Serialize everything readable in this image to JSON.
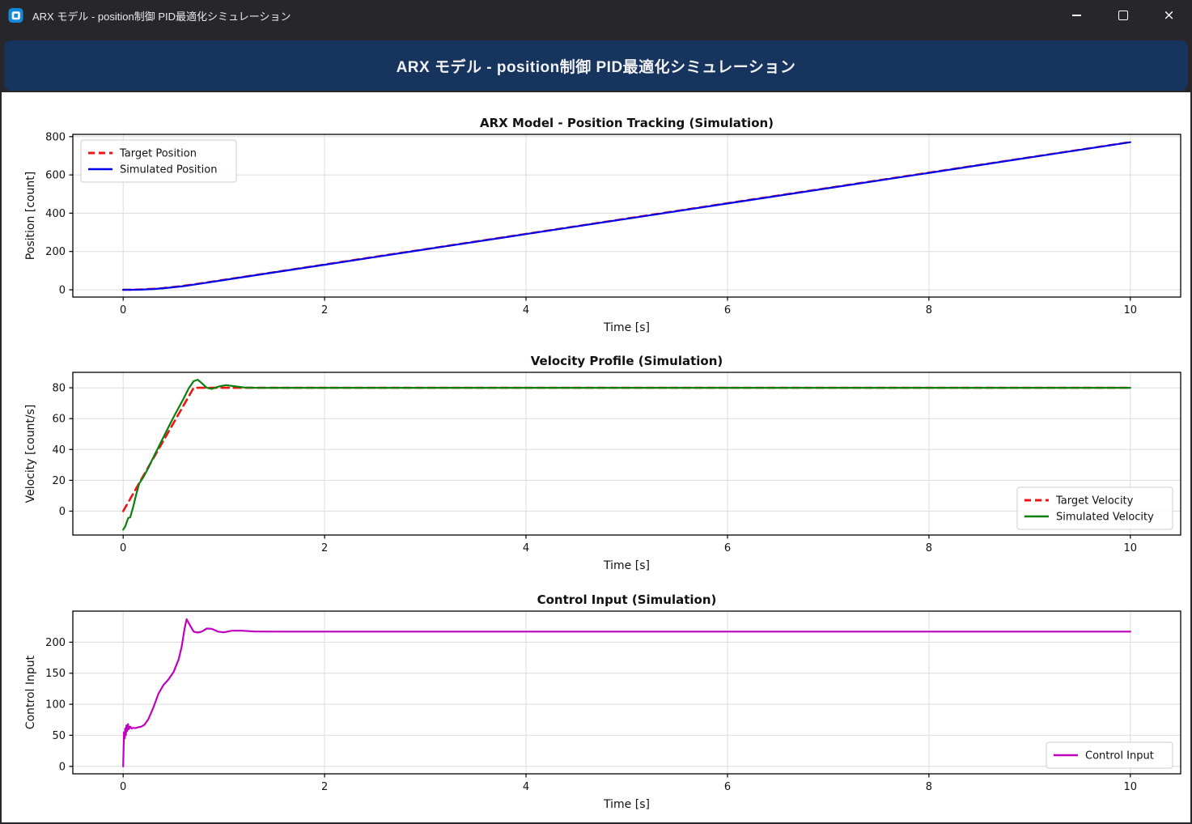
{
  "window": {
    "title": "ARX モデル - position制御 PID最適化シミュレーション",
    "controls": {
      "minimize": "minimize",
      "maximize": "maximize",
      "close_glyph": "×"
    }
  },
  "header": {
    "title": "ARX モデル - position制御 PID最適化シミュレーション"
  },
  "colors": {
    "titlebar_bg": "#26262b",
    "banner_bg": "#16345e",
    "figure_bg": "#ffffff",
    "target_red": "#f01414",
    "position_blue": "#0000ee",
    "velocity_green": "#0c800c",
    "control_magenta": "#bf00bf",
    "grid": "#dcdcdc"
  },
  "chart_data": [
    {
      "type": "line",
      "title": "ARX Model - Position Tracking (Simulation)",
      "xlabel": "Time [s]",
      "ylabel": "Position [count]",
      "xlim": [
        -0.5,
        10.5
      ],
      "ylim": [
        -38,
        812
      ],
      "xticks": [
        0,
        2,
        4,
        6,
        8,
        10
      ],
      "yticks": [
        0,
        200,
        400,
        600,
        800
      ],
      "grid": true,
      "legend": "upper-left",
      "series": [
        {
          "name": "Target Position",
          "color": "#f01414",
          "dash": true,
          "width": 2.6,
          "x": [
            0,
            0.1,
            0.2,
            0.3,
            0.4,
            0.5,
            0.6,
            0.7,
            1,
            1.5,
            2,
            2.5,
            3,
            4,
            5,
            6,
            7,
            8,
            9,
            10
          ],
          "y": [
            0,
            0.6,
            2.3,
            5.1,
            9.1,
            14.3,
            20.6,
            28,
            52,
            92,
            132,
            172,
            212,
            292,
            372,
            452,
            532,
            612,
            692,
            772
          ]
        },
        {
          "name": "Simulated Position",
          "color": "#0000ee",
          "dash": false,
          "width": 2.2,
          "x": [
            0,
            0.1,
            0.2,
            0.3,
            0.4,
            0.5,
            0.6,
            0.7,
            1,
            1.5,
            2,
            2.5,
            3,
            4,
            5,
            6,
            7,
            8,
            9,
            10
          ],
          "y": [
            0,
            0.1,
            1.4,
            4.0,
            7.9,
            13.0,
            19.2,
            26.5,
            50.8,
            90.8,
            130.9,
            170.9,
            210.9,
            290.9,
            370.9,
            450.9,
            530.9,
            610.9,
            690.9,
            770.9
          ]
        }
      ]
    },
    {
      "type": "line",
      "title": "Velocity Profile (Simulation)",
      "xlabel": "Time [s]",
      "ylabel": "Velocity [count/s]",
      "xlim": [
        -0.5,
        10.5
      ],
      "ylim": [
        -15.5,
        90
      ],
      "xticks": [
        0,
        2,
        4,
        6,
        8,
        10
      ],
      "yticks": [
        0,
        20,
        40,
        60,
        80
      ],
      "grid": true,
      "legend": "lower-right",
      "series": [
        {
          "name": "Target Velocity",
          "color": "#f01414",
          "dash": true,
          "width": 2.6,
          "x": [
            0,
            0.7,
            10
          ],
          "y": [
            0,
            80,
            80
          ]
        },
        {
          "name": "Simulated Velocity",
          "color": "#0c800c",
          "dash": false,
          "width": 2.2,
          "x": [
            0,
            0.02,
            0.05,
            0.07,
            0.1,
            0.13,
            0.16,
            0.2,
            0.25,
            0.3,
            0.4,
            0.5,
            0.6,
            0.65,
            0.7,
            0.74,
            0.78,
            0.83,
            0.88,
            0.95,
            1.02,
            1.1,
            1.2,
            1.35,
            1.6,
            2,
            10
          ],
          "y": [
            -12,
            -10,
            -4.5,
            -4,
            3,
            11,
            18,
            22,
            28,
            35,
            48,
            61,
            73,
            79.5,
            84.3,
            85.2,
            83,
            80,
            79.3,
            80.8,
            81.7,
            81,
            80.2,
            79.9,
            80,
            80,
            80
          ]
        }
      ]
    },
    {
      "type": "line",
      "title": "Control Input (Simulation)",
      "xlabel": "Time [s]",
      "ylabel": "Control Input",
      "xlim": [
        -0.5,
        10.5
      ],
      "ylim": [
        -12,
        250
      ],
      "xticks": [
        0,
        2,
        4,
        6,
        8,
        10
      ],
      "yticks": [
        0,
        50,
        100,
        150,
        200
      ],
      "grid": true,
      "legend": "lower-right",
      "series": [
        {
          "name": "Control Input",
          "color": "#bf00bf",
          "dash": false,
          "width": 2.2,
          "x": [
            0,
            0.008,
            0.014,
            0.02,
            0.026,
            0.032,
            0.04,
            0.048,
            0.056,
            0.07,
            0.085,
            0.1,
            0.12,
            0.15,
            0.18,
            0.21,
            0.25,
            0.3,
            0.35,
            0.4,
            0.45,
            0.5,
            0.55,
            0.58,
            0.61,
            0.63,
            0.66,
            0.7,
            0.74,
            0.78,
            0.83,
            0.88,
            0.94,
            1.0,
            1.08,
            1.18,
            1.3,
            1.5,
            2,
            10
          ],
          "y": [
            0,
            55,
            45,
            61,
            50,
            66,
            57,
            68,
            60,
            64,
            61,
            62,
            61.5,
            63,
            64,
            67,
            76,
            95,
            117,
            131,
            140,
            152,
            172,
            192,
            222,
            237,
            228,
            217,
            215.5,
            217,
            222,
            221.5,
            217,
            215.8,
            218.5,
            218.5,
            217.3,
            217,
            217,
            217
          ]
        }
      ]
    }
  ]
}
